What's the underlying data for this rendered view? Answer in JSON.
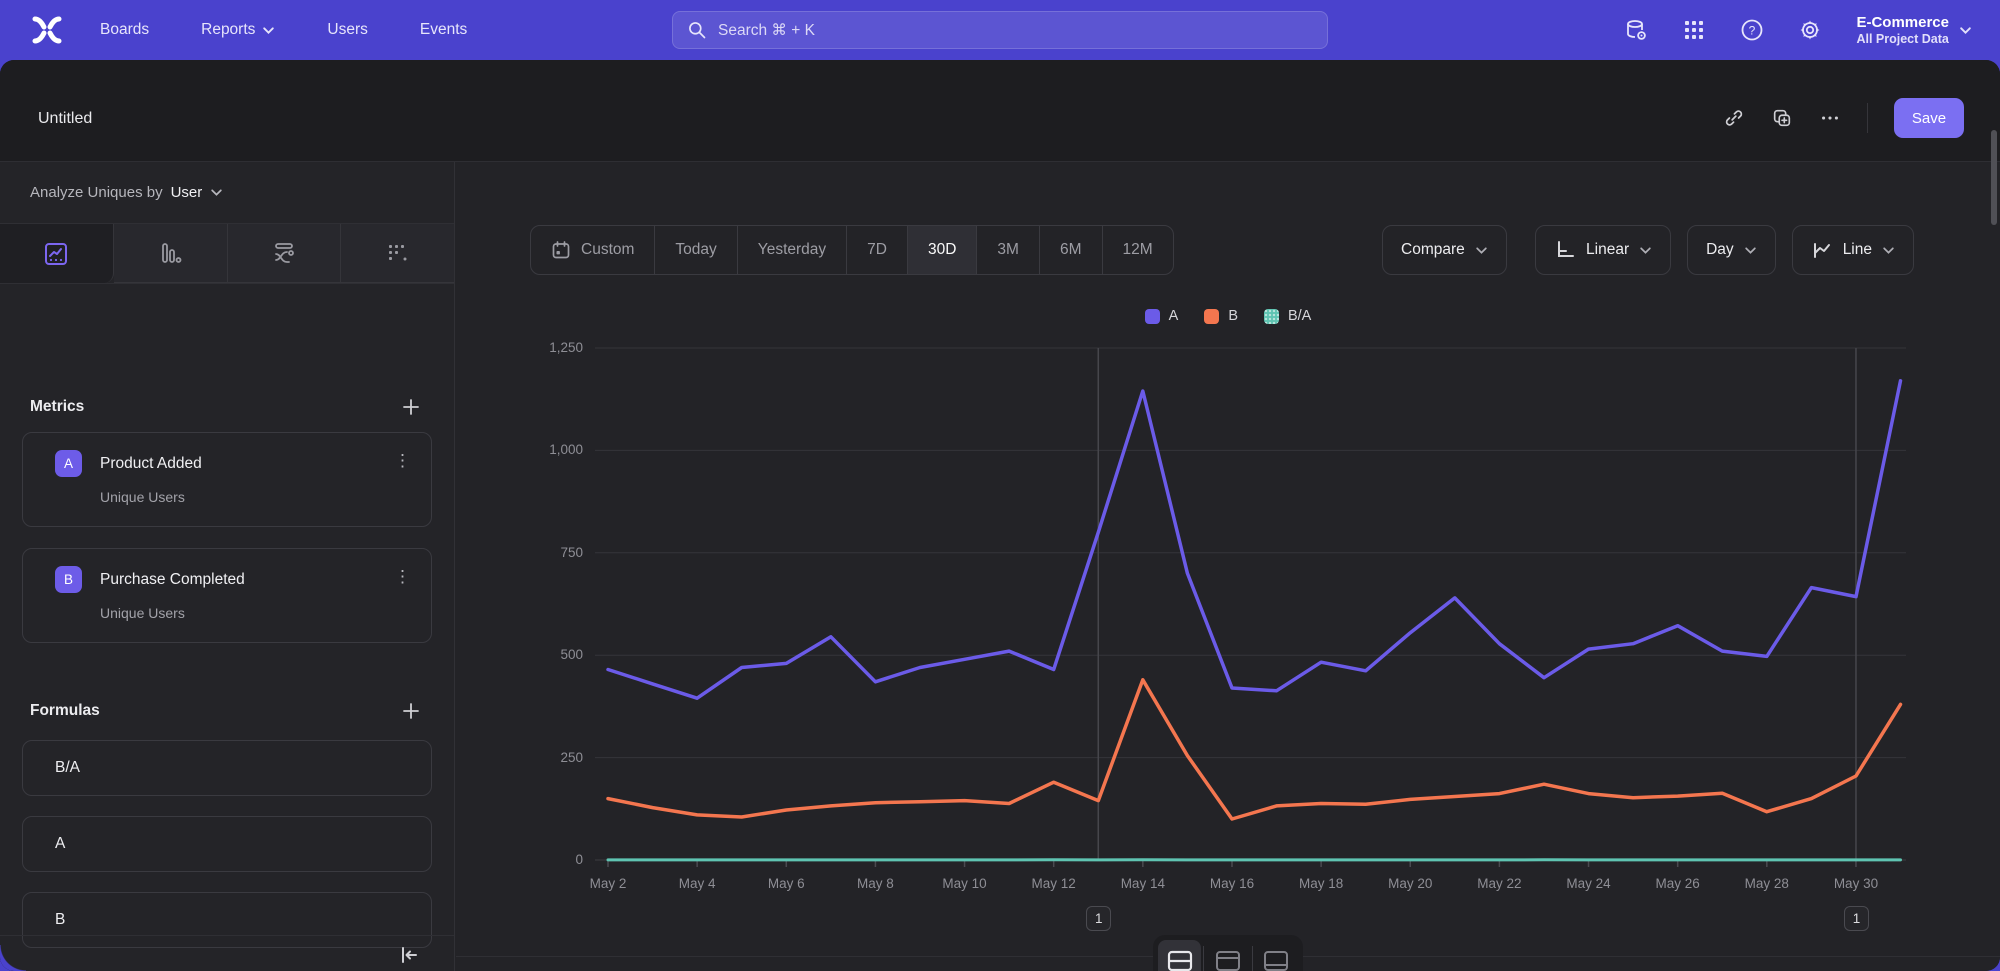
{
  "nav": {
    "items": [
      "Boards",
      "Reports",
      "Users",
      "Events"
    ],
    "search_placeholder": "Search  ⌘ + K",
    "project_name": "E-Commerce",
    "project_scope": "All Project Data"
  },
  "header": {
    "title": "Untitled",
    "save_label": "Save"
  },
  "sidebar": {
    "analyze_prefix": "Analyze Uniques by",
    "analyze_value": "User",
    "metrics_title": "Metrics",
    "metrics": [
      {
        "badge": "A",
        "name": "Product Added",
        "subtitle": "Unique Users"
      },
      {
        "badge": "B",
        "name": "Purchase Completed",
        "subtitle": "Unique Users"
      }
    ],
    "formulas_title": "Formulas",
    "formulas": [
      "B/A",
      "A",
      "B"
    ]
  },
  "toolbar": {
    "date_ranges": [
      "Custom",
      "Today",
      "Yesterday",
      "7D",
      "30D",
      "3M",
      "6M",
      "12M"
    ],
    "active_range": "30D",
    "compare_label": "Compare",
    "scale_label": "Linear",
    "interval_label": "Day",
    "chart_type_label": "Line"
  },
  "chart_data": {
    "type": "line",
    "x": [
      "May 2",
      "May 3",
      "May 4",
      "May 5",
      "May 6",
      "May 7",
      "May 8",
      "May 9",
      "May 10",
      "May 11",
      "May 12",
      "May 13",
      "May 14",
      "May 15",
      "May 16",
      "May 17",
      "May 18",
      "May 19",
      "May 20",
      "May 21",
      "May 22",
      "May 23",
      "May 24",
      "May 25",
      "May 26",
      "May 27",
      "May 28",
      "May 29",
      "May 30",
      "May 31"
    ],
    "label_every": 2,
    "ylim": [
      0,
      1250
    ],
    "y_ticks": [
      "0",
      "250",
      "500",
      "750",
      "1,000",
      "1,250"
    ],
    "grid": true,
    "legend_position": "top-center",
    "series": [
      {
        "name": "A",
        "color": "#6b5be8",
        "values": [
          465,
          430,
          395,
          470,
          480,
          545,
          435,
          470,
          490,
          510,
          465,
          800,
          1145,
          700,
          420,
          413,
          483,
          462,
          555,
          640,
          528,
          445,
          515,
          528,
          572,
          510,
          497,
          665,
          643,
          1170
        ]
      },
      {
        "name": "B",
        "color": "#f4764f",
        "values": [
          150,
          128,
          110,
          105,
          122,
          132,
          140,
          142,
          145,
          138,
          190,
          145,
          440,
          255,
          100,
          132,
          138,
          136,
          148,
          155,
          162,
          185,
          162,
          152,
          156,
          163,
          118,
          150,
          205,
          380
        ]
      },
      {
        "name": "B/A",
        "color": "#5fc4b2",
        "values": [
          0.32,
          0.3,
          0.28,
          0.22,
          0.25,
          0.24,
          0.32,
          0.3,
          0.3,
          0.27,
          0.41,
          0.18,
          0.38,
          0.36,
          0.24,
          0.32,
          0.29,
          0.29,
          0.27,
          0.24,
          0.31,
          0.42,
          0.31,
          0.29,
          0.27,
          0.32,
          0.24,
          0.23,
          0.32,
          0.32
        ]
      }
    ],
    "annotations": [
      {
        "x": "May 13",
        "label": "1"
      },
      {
        "x": "May 30",
        "label": "1"
      }
    ]
  }
}
